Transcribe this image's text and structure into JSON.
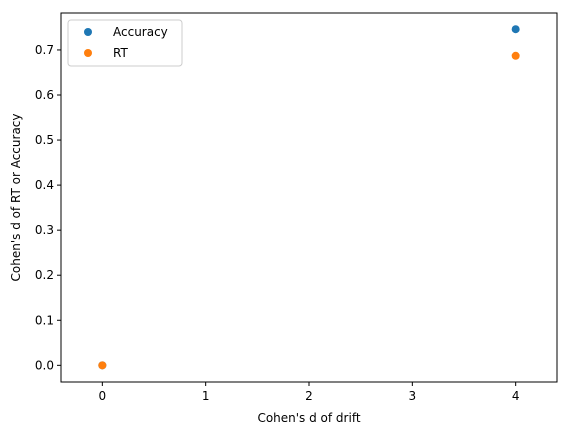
{
  "chart_data": {
    "type": "scatter",
    "xlabel": "Cohen's d of drift",
    "ylabel": "Cohen's d of RT or Accuracy",
    "xlim": [
      -0.4,
      4.4
    ],
    "ylim": [
      -0.037,
      0.782
    ],
    "xticks": [
      "0",
      "1",
      "2",
      "3",
      "4"
    ],
    "yticks": [
      "0.0",
      "0.1",
      "0.2",
      "0.3",
      "0.4",
      "0.5",
      "0.6",
      "0.7"
    ],
    "grid": false,
    "legend_position": "upper-left",
    "series": [
      {
        "name": "Accuracy",
        "color": "#1f77b4",
        "points": [
          {
            "x": 0,
            "y": 0.0
          },
          {
            "x": 4,
            "y": 0.746
          }
        ]
      },
      {
        "name": "RT",
        "color": "#ff7f0e",
        "points": [
          {
            "x": 0,
            "y": 0.0
          },
          {
            "x": 4,
            "y": 0.687
          }
        ]
      }
    ]
  }
}
